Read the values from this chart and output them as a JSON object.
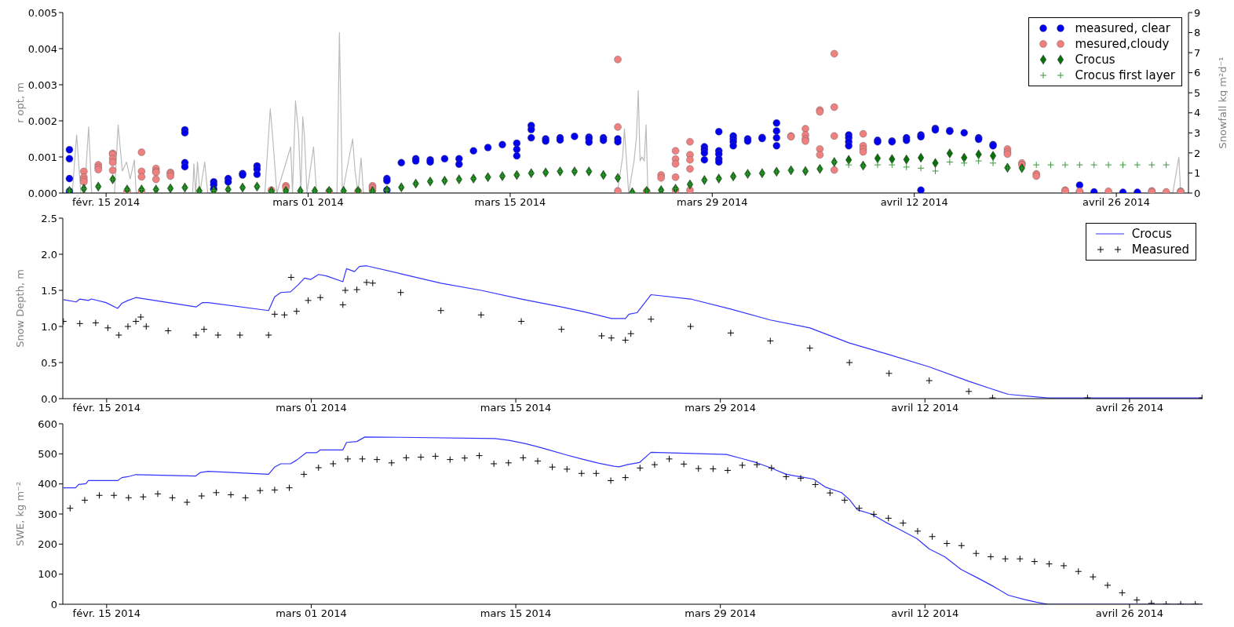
{
  "chart_data": [
    {
      "type": "scatter",
      "ylabel": "r opt, m",
      "y2label": "Snowfall kg m²d⁻¹",
      "legend": "top right",
      "xlim": [
        "2014-02-12",
        "2014-05-01"
      ],
      "xticks": [
        {
          "value": "2014-02-15",
          "label": "févr. 15 2014"
        },
        {
          "value": "2014-03-01",
          "label": "mars 01 2014"
        },
        {
          "value": "2014-03-15",
          "label": "mars 15 2014"
        },
        {
          "value": "2014-03-29",
          "label": "mars 29 2014"
        },
        {
          "value": "2014-04-12",
          "label": "avril 12 2014"
        },
        {
          "value": "2014-04-26",
          "label": "avril 26 2014"
        }
      ],
      "ylim": [
        0,
        0.005
      ],
      "yticks": [
        {
          "value": 0,
          "label": "0.000"
        },
        {
          "value": 0.001,
          "label": "0.001"
        },
        {
          "value": 0.002,
          "label": "0.002"
        },
        {
          "value": 0.003,
          "label": "0.003"
        },
        {
          "value": 0.004,
          "label": "0.004"
        },
        {
          "value": 0.005,
          "label": "0.005"
        }
      ],
      "y2lim": [
        0,
        9
      ],
      "y2ticks": [
        0,
        1,
        2,
        3,
        4,
        5,
        6,
        7,
        8,
        9
      ],
      "x": [
        "2014-02-12T11:00",
        "2014-02-13T11:00",
        "2014-02-14T11:00",
        "2014-02-15T11:00",
        "2014-02-16T11:00",
        "2014-02-17T11:00",
        "2014-02-18T11:00",
        "2014-02-19T11:00",
        "2014-02-20T11:00",
        "2014-02-21T11:00",
        "2014-02-22T11:00",
        "2014-02-23T11:00",
        "2014-02-24T11:00",
        "2014-02-25T11:00",
        "2014-02-26T11:00",
        "2014-02-27T11:00",
        "2014-02-28T11:00",
        "2014-03-01T11:00",
        "2014-03-02T11:00",
        "2014-03-03T11:00",
        "2014-03-04T11:00",
        "2014-03-05T11:00",
        "2014-03-06T11:00",
        "2014-03-07T11:00",
        "2014-03-08T11:00",
        "2014-03-09T11:00",
        "2014-03-10T11:00",
        "2014-03-11T11:00",
        "2014-03-12T11:00",
        "2014-03-13T11:00",
        "2014-03-14T11:00",
        "2014-03-15T11:00",
        "2014-03-16T11:00",
        "2014-03-17T11:00",
        "2014-03-18T11:00",
        "2014-03-19T11:00",
        "2014-03-20T11:00",
        "2014-03-21T11:00",
        "2014-03-22T11:00",
        "2014-03-23T11:00",
        "2014-03-24T11:00",
        "2014-03-25T11:00",
        "2014-03-26T11:00",
        "2014-03-27T11:00",
        "2014-03-28T11:00",
        "2014-03-29T11:00",
        "2014-03-30T11:00",
        "2014-03-31T11:00",
        "2014-04-01T11:00",
        "2014-04-02T11:00",
        "2014-04-03T11:00",
        "2014-04-04T11:00",
        "2014-04-05T11:00",
        "2014-04-06T11:00",
        "2014-04-07T11:00",
        "2014-04-08T11:00",
        "2014-04-09T11:00",
        "2014-04-10T11:00",
        "2014-04-11T11:00",
        "2014-04-12T11:00",
        "2014-04-13T11:00",
        "2014-04-14T11:00",
        "2014-04-15T11:00",
        "2014-04-16T11:00",
        "2014-04-17T11:00",
        "2014-04-18T11:00",
        "2014-04-19T11:00",
        "2014-04-20T11:00",
        "2014-04-21T11:00",
        "2014-04-22T11:00",
        "2014-04-23T11:00",
        "2014-04-24T11:00",
        "2014-04-25T11:00",
        "2014-04-26T11:00",
        "2014-04-27T11:00",
        "2014-04-28T11:00",
        "2014-04-29T11:00"
      ],
      "series": [
        {
          "type": "line",
          "axis": "y2",
          "color": "#bbbbbb",
          "x": [
            "2014-02-12T00:00",
            "2014-02-12T03:00",
            "2014-02-12T16:00",
            "2014-02-12T23:00",
            "2014-02-13T06:00",
            "2014-02-13T12:00",
            "2014-02-13T19:00",
            "2014-02-14T00:00",
            "2014-02-15T14:00",
            "2014-02-15T20:00",
            "2014-02-16T03:00",
            "2014-02-16T10:00",
            "2014-02-16T16:00",
            "2014-02-16T23:00",
            "2014-02-17T02:00",
            "2014-02-21T00:00",
            "2014-02-21T02:00",
            "2014-02-21T05:00",
            "2014-02-21T08:00",
            "2014-02-21T12:00",
            "2014-02-21T20:00",
            "2014-02-22T01:00",
            "2014-02-26T00:00",
            "2014-02-26T09:00",
            "2014-02-26T13:00",
            "2014-02-26T20:00",
            "2014-02-27T19:00",
            "2014-02-27T22:00",
            "2014-02-28T03:00",
            "2014-02-28T08:00",
            "2014-02-28T12:00",
            "2014-02-28T15:00",
            "2014-02-28T18:00",
            "2014-02-28T22:00",
            "2014-03-01T09:00",
            "2014-03-01T14:00",
            "2014-03-03T00:00",
            "2014-03-03T04:00",
            "2014-03-03T09:00",
            "2014-03-04T02:00",
            "2014-03-04T06:00",
            "2014-03-04T11:00",
            "2014-03-04T16:00",
            "2014-03-04T20:00",
            "2014-03-22T10:00",
            "2014-03-22T19:00",
            "2014-03-22T22:00",
            "2014-03-23T05:00",
            "2014-03-23T14:00",
            "2014-03-23T18:00",
            "2014-03-23T21:00",
            "2014-03-24T00:00",
            "2014-03-24T03:00",
            "2014-03-24T07:00",
            "2014-03-24T10:00",
            "2014-03-24T13:00",
            "2014-04-29T22:00",
            "2014-04-30T08:00",
            "2014-04-30T11:00",
            "2014-05-01T00:00"
          ],
          "values": [
            0,
            0,
            0.1,
            2.9,
            0,
            0,
            3.3,
            0,
            0,
            3.4,
            1.1,
            1.55,
            0.7,
            1.65,
            0,
            0,
            1.45,
            0,
            1.55,
            0,
            1.55,
            0,
            0,
            4.2,
            2.8,
            0,
            2.3,
            0,
            4.6,
            3.0,
            0,
            3.8,
            2.8,
            0,
            2.3,
            0,
            0,
            8.0,
            0,
            2.7,
            1.1,
            0,
            1.75,
            0,
            0,
            1.8,
            3.2,
            0,
            1.6,
            2.8,
            5.1,
            1.6,
            1.8,
            1.6,
            3.4,
            0,
            0,
            1.8,
            0,
            0
          ]
        },
        {
          "name": "measured, clear",
          "marker": "circle",
          "color": "#0000ee",
          "x": [
            "2014-02-12T11:00",
            "2014-02-12T11:00",
            "2014-02-12T11:00",
            "2014-02-12T11:00",
            "2014-02-20T11:00",
            "2014-02-20T11:00",
            "2014-02-20T11:00",
            "2014-02-20T11:00",
            "2014-02-22T11:00",
            "2014-02-22T11:00",
            "2014-02-22T11:00",
            "2014-02-23T11:00",
            "2014-02-23T11:00",
            "2014-02-24T11:00",
            "2014-02-24T11:00",
            "2014-02-25T11:00",
            "2014-02-25T11:00",
            "2014-02-25T11:00",
            "2014-03-06T11:00",
            "2014-03-06T11:00",
            "2014-03-06T11:00",
            "2014-03-07T11:00",
            "2014-03-08T11:00",
            "2014-03-08T11:00",
            "2014-03-09T11:00",
            "2014-03-09T11:00",
            "2014-03-10T11:00",
            "2014-03-11T11:00",
            "2014-03-11T11:00",
            "2014-03-12T11:00",
            "2014-03-13T11:00",
            "2014-03-14T11:00",
            "2014-03-15T11:00",
            "2014-03-15T11:00",
            "2014-03-15T11:00",
            "2014-03-16T11:00",
            "2014-03-16T11:00",
            "2014-03-16T11:00",
            "2014-03-17T11:00",
            "2014-03-17T11:00",
            "2014-03-18T11:00",
            "2014-03-18T11:00",
            "2014-03-19T11:00",
            "2014-03-20T11:00",
            "2014-03-20T11:00",
            "2014-03-20T11:00",
            "2014-03-21T11:00",
            "2014-03-21T11:00",
            "2014-03-22T11:00",
            "2014-03-22T11:00",
            "2014-03-28T11:00",
            "2014-03-28T11:00",
            "2014-03-28T11:00",
            "2014-03-28T11:00",
            "2014-03-29T11:00",
            "2014-03-29T11:00",
            "2014-03-29T11:00",
            "2014-03-29T11:00",
            "2014-03-29T11:00",
            "2014-03-30T11:00",
            "2014-03-30T11:00",
            "2014-03-30T11:00",
            "2014-03-30T11:00",
            "2014-03-31T11:00",
            "2014-03-31T11:00",
            "2014-04-01T11:00",
            "2014-04-01T11:00",
            "2014-04-02T11:00",
            "2014-04-02T11:00",
            "2014-04-02T11:00",
            "2014-04-02T11:00",
            "2014-04-07T11:00",
            "2014-04-07T11:00",
            "2014-04-07T11:00",
            "2014-04-07T11:00",
            "2014-04-09T11:00",
            "2014-04-09T11:00",
            "2014-04-10T11:00",
            "2014-04-10T11:00",
            "2014-04-11T11:00",
            "2014-04-11T11:00",
            "2014-04-12T11:00",
            "2014-04-12T11:00",
            "2014-04-12T11:00",
            "2014-04-13T11:00",
            "2014-04-13T11:00",
            "2014-04-14T11:00",
            "2014-04-14T11:00",
            "2014-04-15T11:00",
            "2014-04-16T11:00",
            "2014-04-16T11:00",
            "2014-04-17T11:00",
            "2014-04-17T11:00",
            "2014-04-23T11:00",
            "2014-04-23T11:00",
            "2014-04-24T11:00",
            "2014-04-26T11:00",
            "2014-04-27T11:00"
          ],
          "values": [
            0.0012,
            0.00095,
            0.0004,
            5e-05,
            0.00175,
            0.00167,
            0.00084,
            0.00073,
            0.00031,
            0.00023,
            0.00011,
            0.0004,
            0.00031,
            0.00054,
            0.0005,
            0.00075,
            0.00066,
            0.00052,
            0.0004,
            0.00034,
            8e-05,
            0.00084,
            0.00095,
            0.00089,
            0.00092,
            0.00086,
            0.00095,
            0.00095,
            0.0008,
            0.00117,
            0.00126,
            0.00134,
            0.00138,
            0.00121,
            0.00103,
            0.00187,
            0.00176,
            0.00153,
            0.0015,
            0.00144,
            0.00153,
            0.00147,
            0.00157,
            0.00155,
            0.0015,
            0.00141,
            0.00153,
            0.00146,
            0.0015,
            0.00142,
            0.00128,
            0.0012,
            0.00111,
            0.00092,
            0.0017,
            0.00117,
            0.00108,
            0.00094,
            0.00086,
            0.00158,
            0.0015,
            0.00142,
            0.00131,
            0.0015,
            0.00144,
            0.00154,
            0.00151,
            0.00194,
            0.00172,
            0.00153,
            0.00131,
            0.00161,
            0.00153,
            0.00142,
            0.00131,
            0.00146,
            0.00142,
            0.00144,
            0.00142,
            0.00153,
            0.00146,
            0.00161,
            0.00156,
            8e-05,
            0.00179,
            0.00175,
            0.00173,
            0.00171,
            0.00167,
            0.00153,
            0.00149,
            0.00134,
            0.00131,
            0.00022,
            3e-05,
            3e-05,
            2e-05,
            2e-05
          ]
        },
        {
          "name": "mesured,cloudy",
          "marker": "circle",
          "color": "#f08080",
          "x": [
            "2014-02-13T11:00",
            "2014-02-13T11:00",
            "2014-02-13T11:00",
            "2014-02-13T11:00",
            "2014-02-14T11:00",
            "2014-02-14T11:00",
            "2014-02-14T11:00",
            "2014-02-15T11:00",
            "2014-02-15T11:00",
            "2014-02-15T11:00",
            "2014-02-15T11:00",
            "2014-02-15T11:00",
            "2014-02-16T11:00",
            "2014-02-17T11:00",
            "2014-02-17T11:00",
            "2014-02-17T11:00",
            "2014-02-17T11:00",
            "2014-02-18T11:00",
            "2014-02-18T11:00",
            "2014-02-18T11:00",
            "2014-02-18T11:00",
            "2014-02-19T11:00",
            "2014-02-19T11:00",
            "2014-02-19T11:00",
            "2014-02-26T11:00",
            "2014-02-27T11:00",
            "2014-02-27T11:00",
            "2014-03-02T11:00",
            "2014-03-04T11:00",
            "2014-03-05T11:00",
            "2014-03-05T11:00",
            "2014-03-05T11:00",
            "2014-03-22T11:00",
            "2014-03-22T11:00",
            "2014-03-22T11:00",
            "2014-03-24T11:00",
            "2014-03-25T11:00",
            "2014-03-25T11:00",
            "2014-03-26T11:00",
            "2014-03-26T11:00",
            "2014-03-26T11:00",
            "2014-03-26T11:00",
            "2014-03-26T11:00",
            "2014-03-27T11:00",
            "2014-03-27T11:00",
            "2014-03-27T11:00",
            "2014-03-27T11:00",
            "2014-03-27T11:00",
            "2014-04-03T11:00",
            "2014-04-03T11:00",
            "2014-04-04T11:00",
            "2014-04-04T11:00",
            "2014-04-04T11:00",
            "2014-04-04T11:00",
            "2014-04-05T11:00",
            "2014-04-05T11:00",
            "2014-04-05T11:00",
            "2014-04-05T11:00",
            "2014-04-06T11:00",
            "2014-04-06T11:00",
            "2014-04-06T11:00",
            "2014-04-06T11:00",
            "2014-04-08T11:00",
            "2014-04-08T11:00",
            "2014-04-08T11:00",
            "2014-04-08T11:00",
            "2014-04-18T11:00",
            "2014-04-18T11:00",
            "2014-04-18T11:00",
            "2014-04-19T11:00",
            "2014-04-19T11:00",
            "2014-04-20T11:00",
            "2014-04-20T11:00",
            "2014-04-22T11:00",
            "2014-04-22T11:00",
            "2014-04-23T11:00",
            "2014-04-25T11:00",
            "2014-04-28T11:00",
            "2014-04-28T11:00",
            "2014-04-29T11:00",
            "2014-04-30T11:00",
            "2014-04-30T11:00"
          ],
          "values": [
            0.0006,
            0.00044,
            0.00037,
            0.00031,
            0.00078,
            0.00071,
            0.00065,
            0.0011,
            0.00107,
            0.00095,
            0.00085,
            0.00063,
            5e-05,
            0.00113,
            0.0006,
            0.00045,
            5e-05,
            0.00068,
            0.0006,
            0.00057,
            0.00038,
            0.00057,
            0.00053,
            0.00047,
            8e-05,
            0.0002,
            0.00015,
            5e-05,
            5e-05,
            0.0002,
            0.00015,
            8e-05,
            0.0037,
            0.00183,
            6e-05,
            5e-05,
            0.0005,
            0.00042,
            0.00117,
            0.00094,
            0.00081,
            0.00044,
            8e-05,
            0.00142,
            0.00106,
            0.00092,
            0.00067,
            8e-05,
            0.00158,
            0.00156,
            0.00178,
            0.00161,
            0.0015,
            0.00144,
            0.0023,
            0.00225,
            0.00122,
            0.00106,
            0.00386,
            0.00238,
            0.00158,
            0.00064,
            0.00164,
            0.00131,
            0.00122,
            0.00114,
            0.00122,
            0.00114,
            0.00108,
            0.00083,
            0.00078,
            0.00053,
            0.00047,
            8e-05,
            6e-05,
            5e-05,
            5e-05,
            6e-05,
            3e-05,
            3e-05,
            5e-05,
            3e-05
          ]
        },
        {
          "name": "Crocus",
          "marker": "diamond",
          "color": "#0a6e0a",
          "values": [
            6e-05,
            0.00012,
            0.00018,
            0.00038,
            0.0001,
            0.0001,
            0.0001,
            0.00013,
            0.00015,
            6e-05,
            7e-05,
            0.0001,
            0.00015,
            0.00018,
            5e-05,
            6e-05,
            6e-05,
            6e-05,
            6e-05,
            6e-05,
            6e-05,
            5e-05,
            8e-05,
            0.00016,
            0.00026,
            0.00032,
            0.00034,
            0.00038,
            0.0004,
            0.00044,
            0.00047,
            0.0005,
            0.00055,
            0.00057,
            0.0006,
            0.0006,
            0.0006,
            0.0005,
            0.00042,
            2e-05,
            6e-05,
            8e-05,
            0.00012,
            0.00024,
            0.00036,
            0.0004,
            0.00046,
            0.00053,
            0.00055,
            0.00059,
            0.00063,
            0.00061,
            0.00067,
            0.00086,
            0.00092,
            0.00076,
            0.00096,
            0.00094,
            0.00093,
            0.00098,
            0.00083,
            0.0011,
            0.00098,
            0.00107,
            0.00103,
            0.0007,
            0.00069,
            null,
            null,
            null,
            null,
            null,
            null,
            null,
            null,
            null,
            null
          ]
        },
        {
          "name": "Crocus first layer",
          "marker": "cross",
          "color": "#3a9a3a",
          "values": [
            6e-05,
            0.00012,
            0.00018,
            0.00038,
            0.0001,
            0.0001,
            0.0001,
            0.00013,
            0.00015,
            6e-05,
            7e-05,
            0.0001,
            0.00015,
            0.00018,
            5e-05,
            6e-05,
            6e-05,
            6e-05,
            6e-05,
            6e-05,
            6e-05,
            5e-05,
            8e-05,
            0.00016,
            0.00026,
            0.00032,
            0.00034,
            0.00038,
            0.0004,
            0.00044,
            0.00047,
            0.0005,
            0.00055,
            0.00057,
            0.0006,
            0.0006,
            0.0006,
            0.0005,
            0.00042,
            2e-05,
            6e-05,
            8e-05,
            0.00012,
            0.00024,
            0.00036,
            0.0004,
            0.00046,
            0.00053,
            0.00055,
            0.00059,
            0.00063,
            0.00061,
            0.00067,
            0.00086,
            0.00078,
            0.00075,
            0.00078,
            0.00078,
            0.00072,
            0.00069,
            0.00061,
            0.00086,
            0.00083,
            0.00089,
            0.00083,
            0.0007,
            0.00069,
            0.00078,
            0.00078,
            0.00078,
            0.00078,
            0.00078,
            0.00078,
            0.00078,
            0.00078,
            0.00078,
            0.00078
          ]
        }
      ]
    },
    {
      "type": "line",
      "ylabel": "Snow Depth, m",
      "legend": "top right",
      "xlim": [
        "2014-02-12",
        "2014-05-01"
      ],
      "xticks": [
        {
          "value": "2014-02-15",
          "label": "févr. 15 2014"
        },
        {
          "value": "2014-03-01",
          "label": "mars 01 2014"
        },
        {
          "value": "2014-03-15",
          "label": "mars 15 2014"
        },
        {
          "value": "2014-03-29",
          "label": "mars 29 2014"
        },
        {
          "value": "2014-04-12",
          "label": "avril 12 2014"
        },
        {
          "value": "2014-04-26",
          "label": "avril 26 2014"
        }
      ],
      "ylim": [
        0,
        2.5
      ],
      "yticks": [
        {
          "value": 0,
          "label": "0.0"
        },
        {
          "value": 0.5,
          "label": "0.5"
        },
        {
          "value": 1,
          "label": "1.0"
        },
        {
          "value": 1.5,
          "label": "1.5"
        },
        {
          "value": 2,
          "label": "2.0"
        },
        {
          "value": 2.5,
          "label": "2.5"
        }
      ],
      "series": [
        {
          "name": "Crocus",
          "color": "#3333ff",
          "x": [
            "2014-02-12T01:00",
            "2014-02-12T22:00",
            "2014-02-13T04:00",
            "2014-02-13T18:00",
            "2014-02-13T23:00",
            "2014-02-14T23:00",
            "2014-02-15T18:00",
            "2014-02-16T01:00",
            "2014-02-16T11:00",
            "2014-02-17T00:00",
            "2014-02-21T03:00",
            "2014-02-21T13:00",
            "2014-02-21T23:00",
            "2014-02-26T02:00",
            "2014-02-26T12:00",
            "2014-02-26T22:00",
            "2014-02-27T14:00",
            "2014-02-28T03:00",
            "2014-02-28T13:00",
            "2014-02-28T23:00",
            "2014-03-01T12:00",
            "2014-03-02T01:00",
            "2014-03-03T04:00",
            "2014-03-03T10:00",
            "2014-03-03T23:00",
            "2014-03-04T07:00",
            "2014-03-04T19:00",
            "2014-03-07T03:00",
            "2014-03-09T21:00",
            "2014-03-12T15:00",
            "2014-03-15T09:00",
            "2014-03-18T03:00",
            "2014-03-19T18:00",
            "2014-03-21T13:00",
            "2014-03-22T12:00",
            "2014-03-22T18:00",
            "2014-03-23T07:00",
            "2014-03-24T06:00",
            "2014-03-26T23:00",
            "2014-03-29T17:00",
            "2014-04-01T10:00",
            "2014-04-04T03:00",
            "2014-04-06T20:00",
            "2014-04-09T13:00",
            "2014-04-12T07:00",
            "2014-04-15T00:00",
            "2014-04-16T15:00",
            "2014-04-17T17:00",
            "2014-04-20T10:00",
            "2014-04-30T23:00"
          ],
          "values": [
            1.37,
            1.34,
            1.38,
            1.36,
            1.38,
            1.33,
            1.25,
            1.32,
            1.36,
            1.4,
            1.27,
            1.33,
            1.33,
            1.22,
            1.41,
            1.47,
            1.48,
            1.58,
            1.67,
            1.65,
            1.72,
            1.7,
            1.62,
            1.8,
            1.76,
            1.83,
            1.84,
            1.73,
            1.6,
            1.5,
            1.38,
            1.27,
            1.2,
            1.11,
            1.11,
            1.17,
            1.19,
            1.44,
            1.38,
            1.24,
            1.09,
            0.98,
            0.77,
            0.61,
            0.44,
            0.24,
            0.13,
            0.06,
            0.01,
            0.01
          ]
        },
        {
          "name": "Measured",
          "type": "scatter",
          "marker": "cross",
          "color": "#000000",
          "x": [
            "2014-02-12T01:00",
            "2014-02-13T04:00",
            "2014-02-14T06:00",
            "2014-02-15T02:00",
            "2014-02-15T20:00",
            "2014-02-16T11:00",
            "2014-02-17T00:00",
            "2014-02-17T08:00",
            "2014-02-17T17:00",
            "2014-02-19T05:00",
            "2014-02-21T03:00",
            "2014-02-21T16:00",
            "2014-02-22T15:00",
            "2014-02-24T03:00",
            "2014-02-26T02:00",
            "2014-02-26T12:00",
            "2014-02-27T04:00",
            "2014-02-27T15:00",
            "2014-02-28T00:00",
            "2014-02-28T19:00",
            "2014-03-01T15:00",
            "2014-03-03T04:00",
            "2014-03-03T08:00",
            "2014-03-04T03:00",
            "2014-03-04T19:00",
            "2014-03-05T05:00",
            "2014-03-07T03:00",
            "2014-03-09T21:00",
            "2014-03-12T15:00",
            "2014-03-15T09:00",
            "2014-03-18T03:00",
            "2014-03-20T21:00",
            "2014-03-21T13:00",
            "2014-03-22T12:00",
            "2014-03-22T21:00",
            "2014-03-24T06:00",
            "2014-03-26T23:00",
            "2014-03-29T17:00",
            "2014-04-01T10:00",
            "2014-04-04T03:00",
            "2014-04-06T20:00",
            "2014-04-09T13:00",
            "2014-04-12T07:00",
            "2014-04-15T00:00",
            "2014-04-16T15:00",
            "2014-04-23T03:00",
            "2014-04-30T23:00"
          ],
          "values": [
            1.07,
            1.04,
            1.05,
            0.98,
            0.88,
            1.0,
            1.07,
            1.13,
            1.0,
            0.94,
            0.88,
            0.96,
            0.88,
            0.88,
            0.88,
            1.17,
            1.16,
            1.68,
            1.21,
            1.36,
            1.4,
            1.3,
            1.5,
            1.51,
            1.61,
            1.6,
            1.47,
            1.22,
            1.16,
            1.07,
            0.96,
            0.87,
            0.84,
            0.81,
            0.9,
            1.1,
            1.0,
            0.91,
            0.8,
            0.7,
            0.5,
            0.35,
            0.25,
            0.1,
            0.01,
            0.01,
            0.01
          ]
        }
      ]
    },
    {
      "type": "line",
      "ylabel": "SWE, kg m⁻²",
      "xlim": [
        "2014-02-12",
        "2014-05-01"
      ],
      "xticks": [
        {
          "value": "2014-02-15",
          "label": "févr. 15 2014"
        },
        {
          "value": "2014-03-01",
          "label": "mars 01 2014"
        },
        {
          "value": "2014-03-15",
          "label": "mars 15 2014"
        },
        {
          "value": "2014-03-29",
          "label": "mars 29 2014"
        },
        {
          "value": "2014-04-12",
          "label": "avril 12 2014"
        },
        {
          "value": "2014-04-26",
          "label": "avril 26 2014"
        }
      ],
      "ylim": [
        0,
        600
      ],
      "yticks": [
        0,
        100,
        200,
        300,
        400,
        500,
        600
      ],
      "x": [
        "2014-02-12T12:00",
        "2014-02-13T12:00",
        "2014-02-14T12:00",
        "2014-02-15T12:00",
        "2014-02-16T12:00",
        "2014-02-17T12:00",
        "2014-02-18T12:00",
        "2014-02-19T12:00",
        "2014-02-20T12:00",
        "2014-02-21T12:00",
        "2014-02-22T12:00",
        "2014-02-23T12:00",
        "2014-02-24T12:00",
        "2014-02-25T12:00",
        "2014-02-26T12:00",
        "2014-02-27T12:00",
        "2014-02-28T12:00",
        "2014-03-01T12:00",
        "2014-03-02T12:00",
        "2014-03-03T12:00",
        "2014-03-04T12:00",
        "2014-03-05T12:00",
        "2014-03-06T12:00",
        "2014-03-07T12:00",
        "2014-03-08T12:00",
        "2014-03-09T12:00",
        "2014-03-10T12:00",
        "2014-03-11T12:00",
        "2014-03-12T12:00",
        "2014-03-13T12:00",
        "2014-03-14T12:00",
        "2014-03-15T12:00",
        "2014-03-16T12:00",
        "2014-03-17T12:00",
        "2014-03-18T12:00",
        "2014-03-19T12:00",
        "2014-03-20T12:00",
        "2014-03-21T12:00",
        "2014-03-22T12:00",
        "2014-03-23T12:00",
        "2014-03-24T12:00",
        "2014-03-25T12:00",
        "2014-03-26T12:00",
        "2014-03-27T12:00",
        "2014-03-28T12:00",
        "2014-03-29T12:00",
        "2014-03-30T12:00",
        "2014-03-31T12:00",
        "2014-04-01T12:00",
        "2014-04-02T12:00",
        "2014-04-03T12:00",
        "2014-04-04T12:00",
        "2014-04-05T12:00",
        "2014-04-06T12:00",
        "2014-04-07T12:00",
        "2014-04-08T12:00",
        "2014-04-09T12:00",
        "2014-04-10T12:00",
        "2014-04-11T12:00",
        "2014-04-12T12:00",
        "2014-04-13T12:00",
        "2014-04-14T12:00",
        "2014-04-15T12:00",
        "2014-04-16T12:00",
        "2014-04-17T12:00",
        "2014-04-18T12:00",
        "2014-04-19T12:00",
        "2014-04-20T12:00",
        "2014-04-21T12:00",
        "2014-04-22T12:00",
        "2014-04-23T12:00",
        "2014-04-24T12:00",
        "2014-04-25T12:00",
        "2014-04-26T12:00",
        "2014-04-27T12:00",
        "2014-04-28T12:00",
        "2014-04-29T12:00",
        "2014-04-30T12:00"
      ],
      "series": [
        {
          "color": "#3333ff",
          "x": [
            "2014-02-12T01:00",
            "2014-02-12T21:00",
            "2014-02-13T02:00",
            "2014-02-13T14:00",
            "2014-02-13T18:00",
            "2014-02-15T18:00",
            "2014-02-16T01:00",
            "2014-02-16T11:00",
            "2014-02-17T00:00",
            "2014-02-21T02:00",
            "2014-02-21T10:00",
            "2014-02-21T23:00",
            "2014-02-26T02:00",
            "2014-02-26T12:00",
            "2014-02-26T22:00",
            "2014-02-27T14:00",
            "2014-02-28T00:00",
            "2014-02-28T16:00",
            "2014-03-01T09:00",
            "2014-03-01T15:00",
            "2014-03-03T04:00",
            "2014-03-03T10:00",
            "2014-03-04T03:00",
            "2014-03-04T16:00",
            "2014-03-07T03:00",
            "2014-03-13T14:00",
            "2014-03-14T13:00",
            "2014-03-15T16:00",
            "2014-03-16T11:00",
            "2014-03-17T10:00",
            "2014-03-18T10:00",
            "2014-03-19T12:00",
            "2014-03-20T14:00",
            "2014-03-21T17:00",
            "2014-03-22T02:00",
            "2014-03-22T15:00",
            "2014-03-23T11:00",
            "2014-03-24T06:00",
            "2014-03-29T10:00",
            "2014-03-30T12:00",
            "2014-03-31T11:00",
            "2014-04-01T10:00",
            "2014-04-02T12:00",
            "2014-04-04T09:00",
            "2014-04-05T05:00",
            "2014-04-06T07:00",
            "2014-04-06T20:00",
            "2014-04-07T09:00",
            "2014-04-08T08:00",
            "2014-04-09T07:00",
            "2014-04-10T09:00",
            "2014-04-11T11:00",
            "2014-04-12T07:00",
            "2014-04-13T09:00",
            "2014-04-14T11:00",
            "2014-04-15T13:00",
            "2014-04-16T15:00",
            "2014-04-17T17:00",
            "2014-04-18T19:00",
            "2014-04-19T15:00",
            "2014-04-20T10:00",
            "2014-04-30T23:00"
          ],
          "values": [
            387,
            387,
            398,
            401,
            411,
            411,
            421,
            424,
            431,
            426,
            438,
            442,
            432,
            456,
            467,
            467,
            479,
            504,
            504,
            513,
            513,
            538,
            541,
            556,
            555,
            551,
            545,
            534,
            524,
            511,
            497,
            483,
            470,
            459,
            457,
            464,
            471,
            505,
            498,
            484,
            471,
            454,
            432,
            416,
            389,
            371,
            348,
            314,
            300,
            273,
            246,
            218,
            184,
            157,
            116,
            89,
            61,
            30,
            16,
            7,
            0,
            0
          ]
        },
        {
          "type": "scatter",
          "marker": "cross",
          "color": "#000000",
          "values": [
            319,
            346,
            362,
            362,
            354,
            357,
            367,
            354,
            339,
            360,
            371,
            364,
            354,
            378,
            380,
            387,
            432,
            454,
            467,
            483,
            483,
            481,
            470,
            487,
            489,
            492,
            481,
            486,
            494,
            467,
            470,
            487,
            476,
            456,
            449,
            435,
            435,
            411,
            421,
            453,
            464,
            483,
            466,
            451,
            450,
            445,
            462,
            464,
            453,
            424,
            419,
            398,
            370,
            346,
            319,
            299,
            286,
            270,
            243,
            225,
            202,
            195,
            169,
            158,
            151,
            151,
            142,
            134,
            128,
            109,
            91,
            63,
            38,
            14,
            3,
            0,
            0,
            0
          ]
        }
      ]
    }
  ]
}
